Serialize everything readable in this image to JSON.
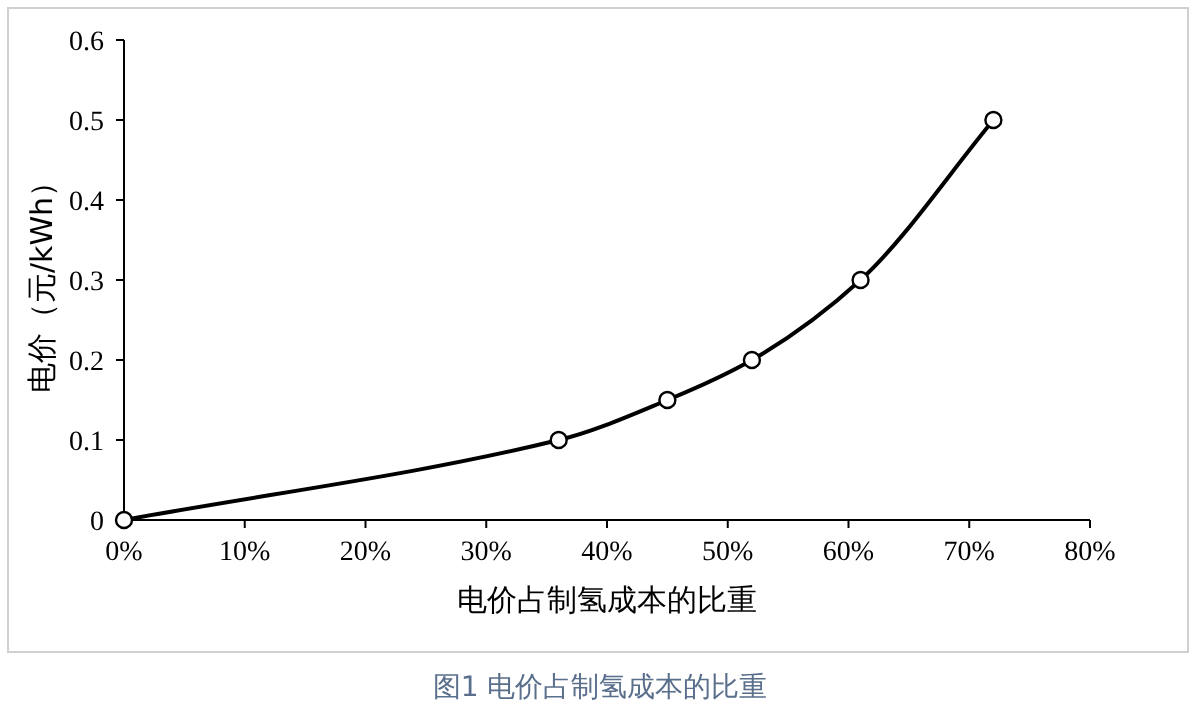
{
  "chart_data": {
    "type": "line",
    "xlabel": "电价占制氢成本的比重",
    "ylabel": "电价（元/kWh）",
    "annotations": [
      "图1  电价占制氢成本的比重"
    ],
    "x": [
      0,
      36,
      45,
      52,
      61,
      72
    ],
    "series": [
      {
        "color": "#000000",
        "values": [
          0,
          0.1,
          0.15,
          0.2,
          0.3,
          0.5
        ]
      }
    ],
    "xlim": [
      0,
      80
    ],
    "xticks": [
      {
        "value": 0,
        "label": "0%"
      },
      {
        "value": 10,
        "label": "10%"
      },
      {
        "value": 20,
        "label": "20%"
      },
      {
        "value": 30,
        "label": "30%"
      },
      {
        "value": 40,
        "label": "40%"
      },
      {
        "value": 50,
        "label": "50%"
      },
      {
        "value": 60,
        "label": "60%"
      },
      {
        "value": 70,
        "label": "70%"
      },
      {
        "value": 80,
        "label": "80%"
      }
    ],
    "ylim": [
      0,
      0.6
    ],
    "yticks": [
      0,
      0.1,
      0.2,
      0.3,
      0.4,
      0.5,
      0.6
    ],
    "marker": "circle",
    "line_style": "solid"
  }
}
